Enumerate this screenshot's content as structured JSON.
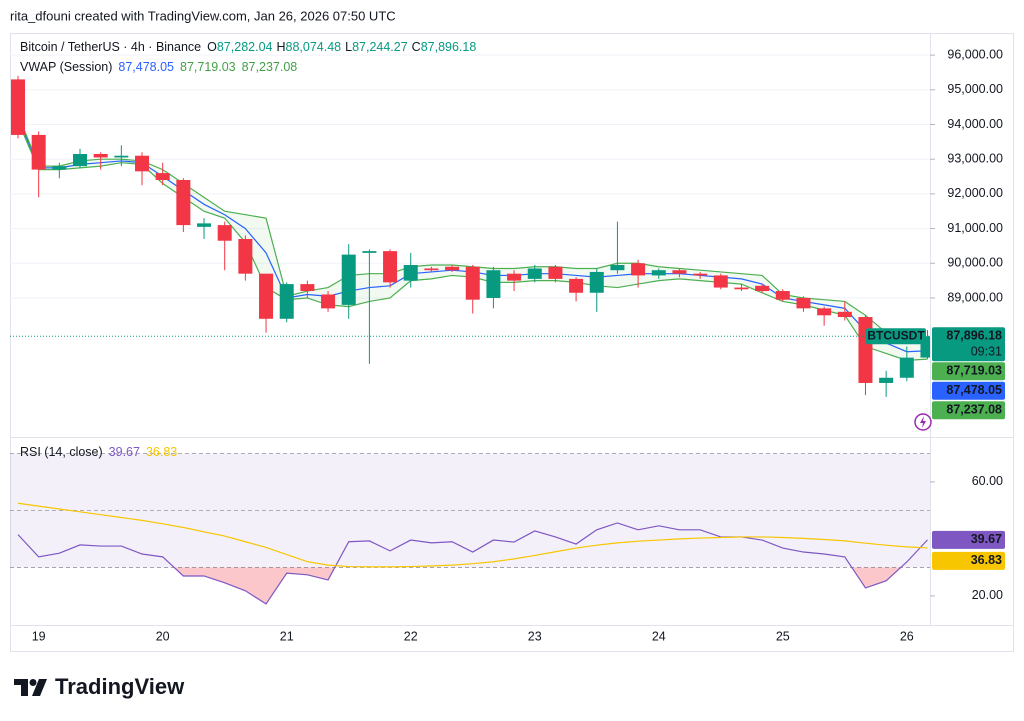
{
  "header": "rita_dfouni created with TradingView.com, Jan 26, 2026 07:50 UTC",
  "footer_logo": "TradingView",
  "chart_data": [
    {
      "type": "candlestick",
      "title": "Bitcoin / TetherUS · 4h · Binance",
      "symbol": "BTCUSDT",
      "countdown": "09:31",
      "legend": [
        {
          "key": "O",
          "label": "87,282.04"
        },
        {
          "key": "H",
          "label": "88,074.48"
        },
        {
          "key": "L",
          "label": "87,244.27"
        },
        {
          "key": "C",
          "label": "87,896.18"
        }
      ],
      "categories": [
        null,
        "19",
        null,
        null,
        null,
        null,
        null,
        "20",
        null,
        null,
        null,
        null,
        null,
        "21",
        null,
        null,
        null,
        null,
        null,
        "22",
        null,
        null,
        null,
        null,
        null,
        "23",
        null,
        null,
        null,
        null,
        null,
        "24",
        null,
        null,
        null,
        null,
        null,
        "25",
        null,
        null,
        null,
        null,
        null,
        "26",
        null
      ],
      "open": [
        95300,
        93700,
        92700,
        92800,
        93150,
        93050,
        93100,
        92600,
        92400,
        91050,
        91100,
        90700,
        89700,
        88400,
        89400,
        89100,
        88800,
        90300,
        90350,
        89500,
        89850,
        89900,
        89900,
        89000,
        89700,
        89550,
        89900,
        89550,
        89150,
        89800,
        90000,
        89650,
        89800,
        89700,
        89650,
        89300,
        89350,
        89200,
        89000,
        88700,
        88600,
        88450,
        86550,
        86700,
        87282.04
      ],
      "high": [
        95400,
        93800,
        92900,
        93300,
        93200,
        93400,
        93200,
        92900,
        92450,
        91300,
        91200,
        90800,
        89700,
        89450,
        89500,
        89200,
        90550,
        90400,
        90400,
        90300,
        89900,
        89950,
        89950,
        89900,
        89800,
        89950,
        89950,
        89600,
        89850,
        91200,
        90100,
        89850,
        89850,
        89750,
        89700,
        89400,
        89400,
        89250,
        89050,
        88750,
        88900,
        88500,
        86900,
        87600,
        88074.48
      ],
      "low": [
        93600,
        91900,
        92450,
        92750,
        92700,
        92800,
        92250,
        92250,
        90900,
        90700,
        89800,
        89500,
        88000,
        88300,
        89000,
        88600,
        88400,
        87100,
        89300,
        89300,
        89750,
        89750,
        88550,
        88700,
        89200,
        89450,
        89450,
        88900,
        88600,
        89700,
        89300,
        89550,
        89600,
        89550,
        89250,
        89200,
        89150,
        88900,
        88600,
        88200,
        88350,
        86200,
        86150,
        86600,
        87244.27
      ],
      "close": [
        93700,
        92700,
        92800,
        93150,
        93050,
        93100,
        92650,
        92400,
        91100,
        91150,
        90650,
        89700,
        88400,
        89400,
        89200,
        88700,
        90250,
        90350,
        89450,
        89950,
        89800,
        89800,
        88950,
        89800,
        89500,
        89850,
        89550,
        89150,
        89750,
        89950,
        89650,
        89800,
        89700,
        89650,
        89300,
        89250,
        89200,
        88950,
        88700,
        88500,
        88450,
        86550,
        86700,
        87280,
        87896.18
      ],
      "up_color": "#089981",
      "down_color": "#f23645",
      "overlay_title": "VWAP (Session)",
      "band_fill": "rgba(76,175,80,0.08)",
      "series": [
        {
          "color": "#2962ff",
          "values": [
            94200,
            92750,
            92750,
            92850,
            92900,
            92950,
            92900,
            92500,
            92100,
            91700,
            91400,
            91000,
            90300,
            89000,
            89100,
            89050,
            89200,
            89300,
            89350,
            89700,
            89750,
            89800,
            89750,
            89650,
            89650,
            89700,
            89700,
            89650,
            89600,
            89650,
            89700,
            89700,
            89700,
            89650,
            89600,
            89550,
            89400,
            89000,
            88900,
            88800,
            88700,
            88050,
            87700,
            87450,
            87478.05
          ],
          "value_labels": [
            null,
            null,
            null,
            null,
            null,
            null,
            null,
            null,
            null,
            null,
            null,
            null,
            null,
            null,
            null,
            null,
            null,
            null,
            null,
            null,
            null,
            null,
            null,
            null,
            null,
            null,
            null,
            null,
            null,
            null,
            null,
            null,
            null,
            null,
            null,
            null,
            null,
            null,
            null,
            null,
            null,
            null,
            null,
            null,
            "87,478.05"
          ]
        },
        {
          "color": "#4caf50",
          "values": [
            94300,
            92800,
            92800,
            92950,
            93000,
            93000,
            92950,
            92700,
            92300,
            91900,
            91500,
            91400,
            91300,
            89050,
            89200,
            89300,
            89650,
            89700,
            89700,
            89900,
            89950,
            89950,
            89900,
            89850,
            89850,
            89900,
            89900,
            89850,
            89850,
            90000,
            90000,
            89900,
            89850,
            89800,
            89750,
            89700,
            89650,
            89100,
            89000,
            88950,
            88900,
            88500,
            88000,
            87700,
            87719.03
          ],
          "value_labels": [
            null,
            null,
            null,
            null,
            null,
            null,
            null,
            null,
            null,
            null,
            null,
            null,
            null,
            null,
            null,
            null,
            null,
            null,
            null,
            null,
            null,
            null,
            null,
            null,
            null,
            null,
            null,
            null,
            null,
            null,
            null,
            null,
            null,
            null,
            null,
            null,
            null,
            null,
            null,
            null,
            null,
            null,
            null,
            null,
            "87,719.03"
          ]
        },
        {
          "color": "#4caf50",
          "values": [
            94100,
            92700,
            92700,
            92750,
            92800,
            92900,
            92850,
            92300,
            91900,
            91500,
            91300,
            90600,
            89300,
            88950,
            89000,
            88800,
            88750,
            88900,
            89000,
            89500,
            89550,
            89650,
            89600,
            89450,
            89450,
            89500,
            89500,
            89450,
            89350,
            89300,
            89400,
            89500,
            89550,
            89500,
            89450,
            89400,
            89150,
            88900,
            88800,
            88650,
            88500,
            87600,
            87400,
            87200,
            87237.08
          ],
          "value_labels": [
            null,
            null,
            null,
            null,
            null,
            null,
            null,
            null,
            null,
            null,
            null,
            null,
            null,
            null,
            null,
            null,
            null,
            null,
            null,
            null,
            null,
            null,
            null,
            null,
            null,
            null,
            null,
            null,
            null,
            null,
            null,
            null,
            null,
            null,
            null,
            null,
            null,
            null,
            null,
            null,
            null,
            null,
            null,
            null,
            "87,237.08"
          ]
        }
      ],
      "ylim": [
        85050,
        96580
      ],
      "yticks": [
        {
          "value": 89000,
          "label": "89,000.00"
        },
        {
          "value": 90000,
          "label": "90,000.00"
        },
        {
          "value": 91000,
          "label": "91,000.00"
        },
        {
          "value": 92000,
          "label": "92,000.00"
        },
        {
          "value": 93000,
          "label": "93,000.00"
        },
        {
          "value": 94000,
          "label": "94,000.00"
        },
        {
          "value": 95000,
          "label": "95,000.00"
        },
        {
          "value": 96000,
          "label": "96,000.00"
        }
      ],
      "grid": true
    },
    {
      "type": "line",
      "title": "RSI (14, close)",
      "series": [
        {
          "color": "#7e57c2",
          "values": [
            41.5,
            33.7,
            35,
            37.9,
            37.5,
            37.5,
            34.7,
            33.7,
            27,
            27,
            24.6,
            21.8,
            17.2,
            28,
            27.4,
            25.6,
            39,
            39.3,
            35.8,
            39.6,
            38.6,
            39,
            35.4,
            39.6,
            38.9,
            42.8,
            40.7,
            38.2,
            43.2,
            45.6,
            43.2,
            44.6,
            43.2,
            43.2,
            40.7,
            40.7,
            39.6,
            36.8,
            35.4,
            34.7,
            33.7,
            22.8,
            25.3,
            31.9,
            39.67
          ],
          "value_labels": [
            null,
            null,
            null,
            null,
            null,
            null,
            null,
            null,
            null,
            null,
            null,
            null,
            null,
            null,
            null,
            null,
            null,
            null,
            null,
            null,
            null,
            null,
            null,
            null,
            null,
            null,
            null,
            null,
            null,
            null,
            null,
            null,
            null,
            null,
            null,
            null,
            null,
            null,
            null,
            null,
            null,
            null,
            null,
            null,
            "39.67"
          ]
        },
        {
          "color": "#f7c600",
          "values": [
            52.5,
            51.5,
            50.5,
            49.5,
            48.5,
            47.5,
            46.5,
            45.3,
            44,
            42.5,
            41,
            39,
            37,
            34.5,
            32,
            30.8,
            30.3,
            30.2,
            30.2,
            30.3,
            30.5,
            30.8,
            31.3,
            32,
            33,
            34.2,
            35.5,
            36.8,
            37.8,
            38.6,
            39.2,
            39.6,
            40,
            40.3,
            40.5,
            40.7,
            40.7,
            40.5,
            40.2,
            39.8,
            39.3,
            38.5,
            37.8,
            37.2,
            36.83
          ],
          "value_labels": [
            null,
            null,
            null,
            null,
            null,
            null,
            null,
            null,
            null,
            null,
            null,
            null,
            null,
            null,
            null,
            null,
            null,
            null,
            null,
            null,
            null,
            null,
            null,
            null,
            null,
            null,
            null,
            null,
            null,
            null,
            null,
            null,
            null,
            null,
            null,
            null,
            null,
            null,
            null,
            null,
            null,
            null,
            null,
            null,
            "36.83"
          ]
        }
      ],
      "levels": [
        70,
        50,
        30
      ],
      "band_fill": "rgba(126,87,194,0.09)",
      "oversold_fill": "rgba(242,54,69,0.28)",
      "ylim": [
        9.8,
        74.7
      ],
      "yticks": [
        {
          "value": 20,
          "label": "20.00"
        },
        {
          "value": 60,
          "label": "60.00"
        }
      ],
      "grid": false
    }
  ]
}
